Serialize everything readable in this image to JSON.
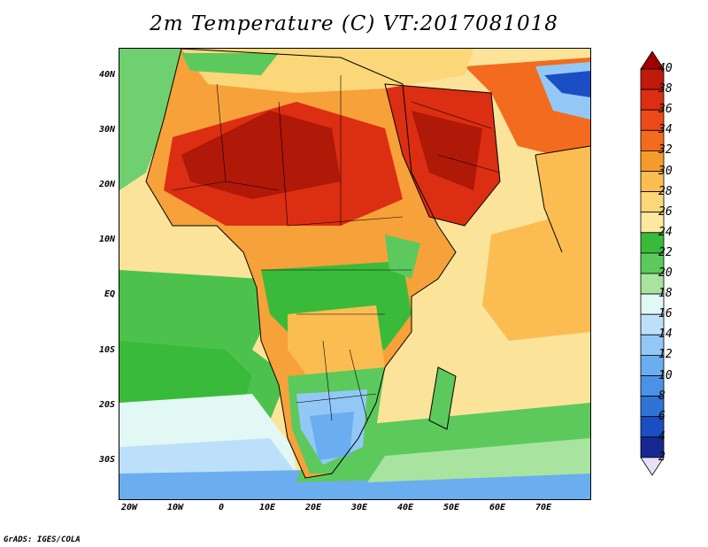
{
  "title": "2m Temperature (C) VT:2017081018",
  "credit": "GrADS: IGES/COLA",
  "y_ticks": [
    "40N",
    "30N",
    "20N",
    "10N",
    "EQ",
    "10S",
    "20S",
    "30S"
  ],
  "x_ticks": [
    "20W",
    "10W",
    "0",
    "10E",
    "20E",
    "30E",
    "40E",
    "50E",
    "60E",
    "70E"
  ],
  "colorbar": {
    "labels": [
      "40",
      "38",
      "36",
      "34",
      "32",
      "30",
      "28",
      "26",
      "24",
      "22",
      "20",
      "18",
      "16",
      "14",
      "12",
      "10",
      "8",
      "6",
      "4",
      "2"
    ],
    "colors": [
      "#a00000",
      "#c01a08",
      "#dc2e12",
      "#ec4a1a",
      "#f36b1e",
      "#f79a2c",
      "#fbbd52",
      "#fcd77a",
      "#fde9a0",
      "#3aba3a",
      "#5cc95c",
      "#a8e4a0",
      "#e2f8f4",
      "#bde0fa",
      "#93c8f6",
      "#6aaeef",
      "#4b91e6",
      "#2f73d6",
      "#1a4ec2",
      "#16288f",
      "#1a1a6e"
    ]
  },
  "map": {
    "region": "Africa and Arabian Peninsula",
    "lon_range": [
      -22,
      80
    ],
    "lat_range": [
      -38,
      45
    ]
  }
}
